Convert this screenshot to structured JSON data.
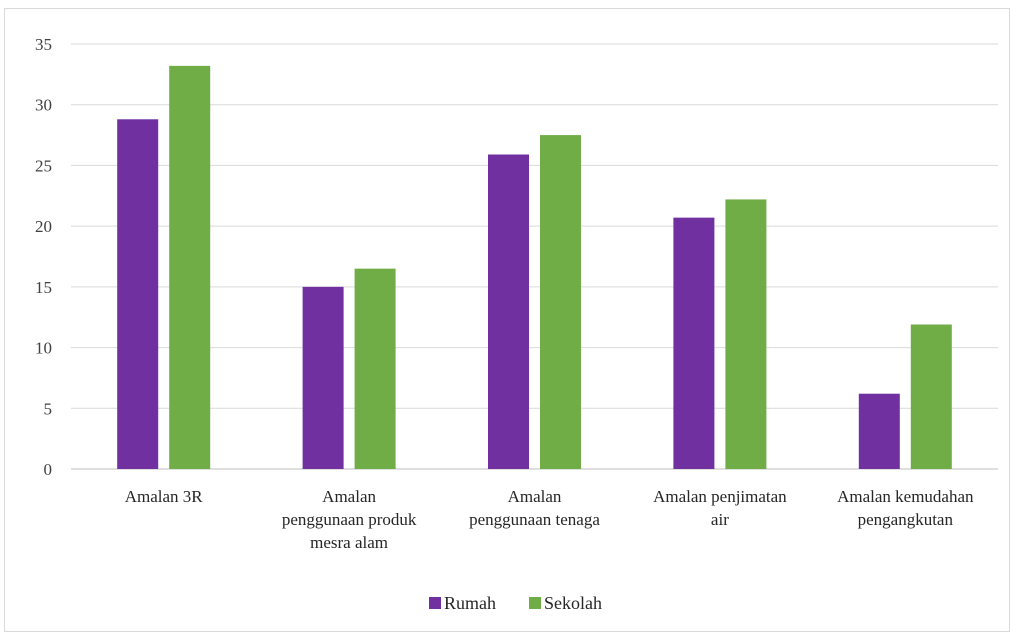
{
  "chart_data": {
    "type": "bar",
    "categories": [
      [
        "Amalan 3R"
      ],
      [
        "Amalan",
        "penggunaan produk",
        "mesra alam"
      ],
      [
        "Amalan",
        "penggunaan tenaga"
      ],
      [
        "Amalan penjimatan",
        "air"
      ],
      [
        "Amalan kemudahan",
        "pengangkutan"
      ]
    ],
    "series": [
      {
        "name": "Rumah",
        "color": "#7030a0",
        "values": [
          28.8,
          15.0,
          25.9,
          20.7,
          6.2
        ]
      },
      {
        "name": "Sekolah",
        "color": "#70ad47",
        "values": [
          33.2,
          16.5,
          27.5,
          22.2,
          11.9
        ]
      }
    ],
    "yticks": [
      "0",
      "5",
      "10",
      "15",
      "20",
      "25",
      "30",
      "35"
    ],
    "ylim": [
      0,
      35
    ],
    "grid": true,
    "legend_position": "bottom"
  }
}
